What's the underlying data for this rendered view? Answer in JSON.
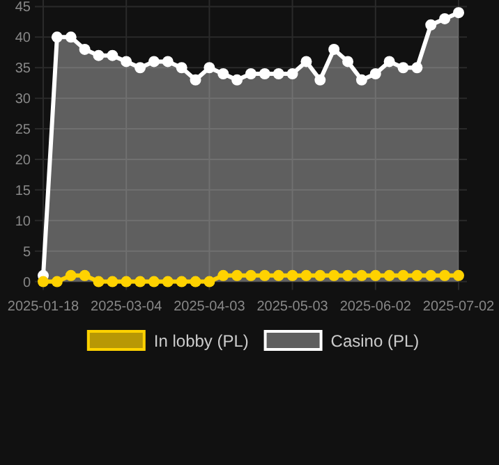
{
  "chart_data": {
    "type": "line",
    "categories": [
      "2025-01-18",
      null,
      null,
      null,
      null,
      null,
      "2025-03-04",
      null,
      null,
      null,
      null,
      null,
      "2025-04-03",
      null,
      null,
      null,
      null,
      null,
      "2025-05-03",
      null,
      null,
      null,
      null,
      null,
      "2025-06-02",
      null,
      null,
      null,
      null,
      null,
      "2025-07-02"
    ],
    "series": [
      {
        "name": "In lobby (PL)",
        "color": "#ffd200",
        "values": [
          0,
          0,
          1,
          1,
          0,
          0,
          0,
          0,
          0,
          0,
          0,
          0,
          0,
          1,
          1,
          1,
          1,
          1,
          1,
          1,
          1,
          1,
          1,
          1,
          1,
          1,
          1,
          1,
          1,
          1,
          1
        ]
      },
      {
        "name": "Casino (PL)",
        "type": "area",
        "color": "#ffffff",
        "values": [
          1,
          40,
          40,
          38,
          37,
          37,
          36,
          35,
          36,
          36,
          35,
          33,
          35,
          34,
          33,
          34,
          34,
          34,
          34,
          36,
          33,
          38,
          36,
          33,
          34,
          36,
          35,
          35,
          42,
          43,
          44
        ]
      }
    ],
    "ylim": [
      0,
      45
    ],
    "yticks": [
      0,
      5,
      10,
      15,
      20,
      25,
      30,
      35,
      40,
      45
    ],
    "grid": true,
    "legend": "bottom",
    "marker": "circle"
  }
}
